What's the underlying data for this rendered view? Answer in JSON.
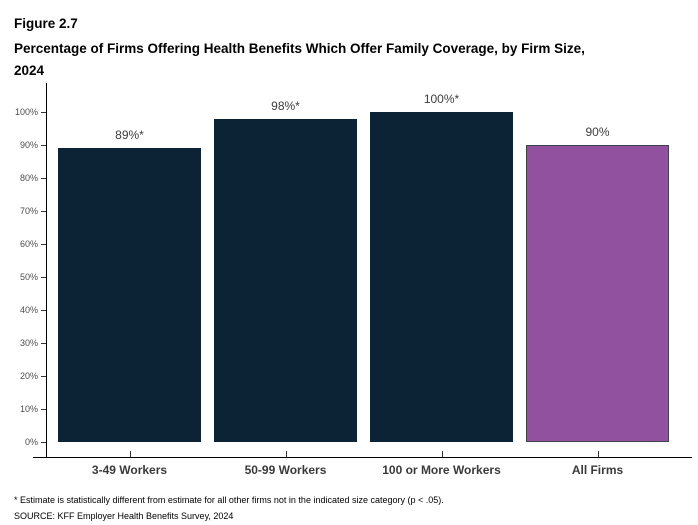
{
  "header": {
    "figure_label": "Figure 2.7",
    "title_lines": [
      "Percentage of Firms Offering Health Benefits Which Offer Family Coverage, by Firm Size,",
      "2024"
    ]
  },
  "chart_data": {
    "type": "bar",
    "title": "Percentage of Firms Offering Health Benefits Which Offer Family Coverage, by Firm Size, 2024",
    "categories": [
      "3-49 Workers",
      "50-99 Workers",
      "100 or More Workers",
      "All Firms"
    ],
    "values": [
      89,
      98,
      100,
      90
    ],
    "data_labels": [
      "89%*",
      "98%*",
      "100%*",
      "90%"
    ],
    "bar_colors": [
      "#0c2336",
      "#0c2336",
      "#0c2336",
      "#91519f"
    ],
    "bar_border_colors": [
      "#0c2336",
      "#0c2336",
      "#0c2336",
      "#3f4249"
    ],
    "xlabel": "",
    "ylabel": "",
    "ylim": [
      0,
      100
    ],
    "y_tick_labels": [
      "0%",
      "10%",
      "20%",
      "30%",
      "40%",
      "50%",
      "60%",
      "70%",
      "80%",
      "90%",
      "100%"
    ],
    "grid": false,
    "legend": "none"
  },
  "footnotes": {
    "note": "* Estimate is statistically different from estimate for all other firms not in the indicated size category (p < .05).",
    "source": "SOURCE: KFF Employer Health Benefits Survey, 2024"
  },
  "colors": {
    "bar_navy": "#0c2336",
    "bar_purple": "#91519f",
    "axis": "#000000",
    "tick_label": "#4d4d4d",
    "data_label": "#3d3d3d"
  }
}
